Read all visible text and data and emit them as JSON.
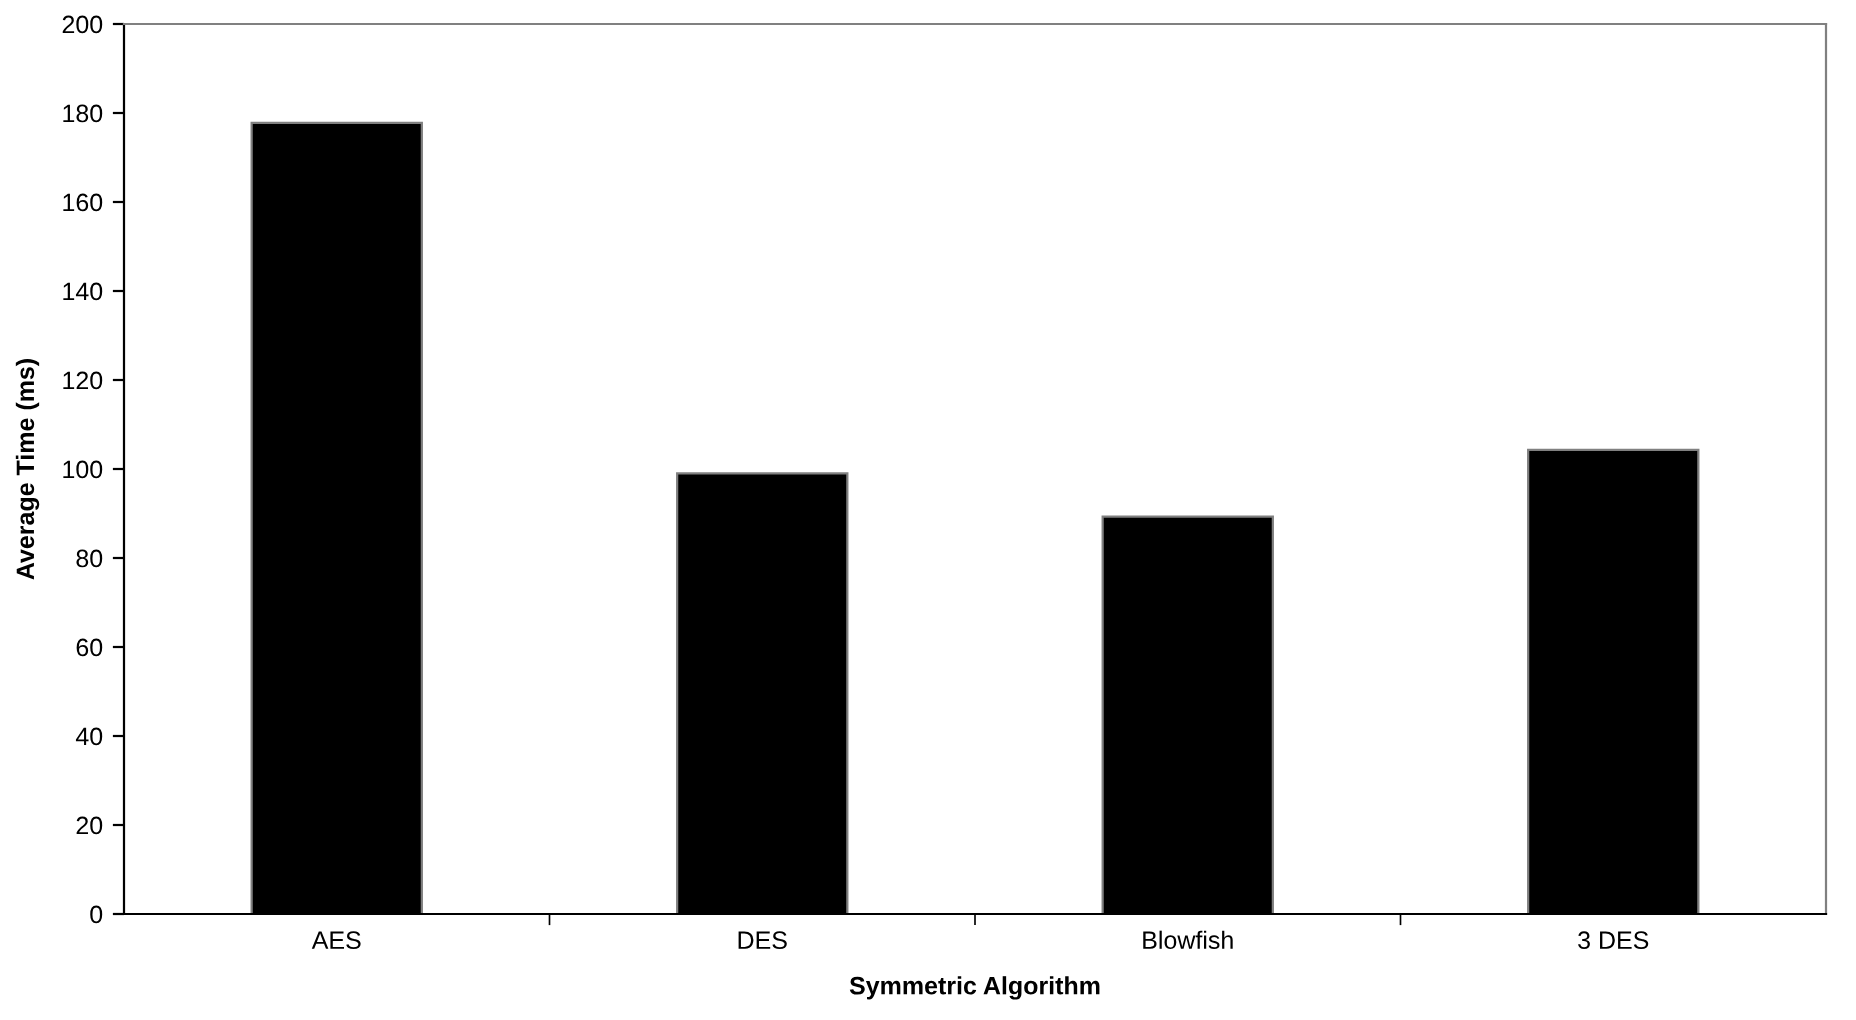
{
  "chart_data": {
    "type": "bar",
    "categories": [
      "AES",
      "DES",
      "Blowfish",
      "3 DES"
    ],
    "values": [
      177.8,
      99,
      89.3,
      104.3
    ],
    "color": "#000000",
    "xlabel": "Symmetric Algorithm",
    "ylabel": "Average Time (ms)",
    "ylim": [
      0,
      200
    ],
    "yticks": [
      0,
      20,
      40,
      60,
      80,
      100,
      120,
      140,
      160,
      180,
      200
    ],
    "grid": false,
    "legend": false
  }
}
